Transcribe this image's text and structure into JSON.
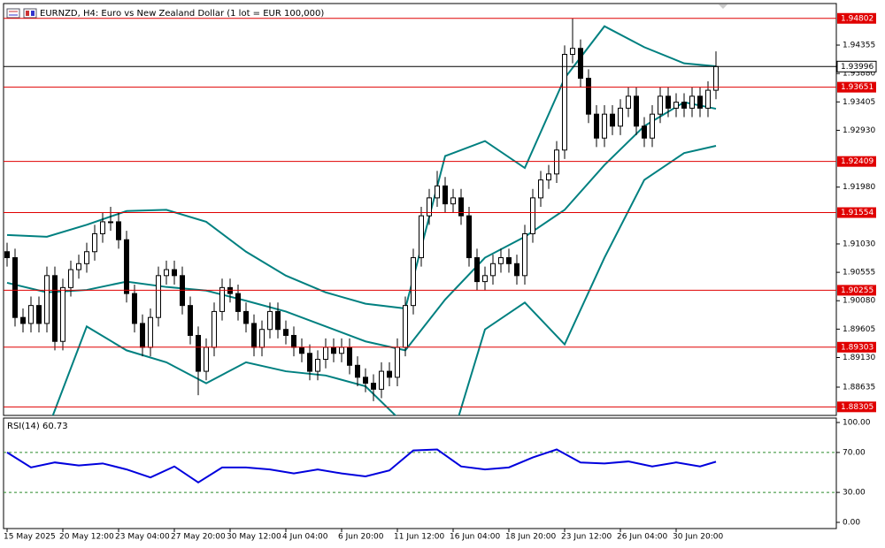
{
  "chart_data": [
    {
      "type": "candlestick",
      "title": "EURNZD, H4:  Euro vs New Zealand Dollar (1 lot = EUR 100,000)",
      "ylim": [
        1.88162,
        1.9505
      ],
      "yticks": [
        1.94355,
        {
          "value": 1.9388,
          "label": "1.93880"
        },
        1.93405,
        {
          "value": 1.9293,
          "label": "1.92930"
        },
        {
          "value": 1.9198,
          "label": "1.91980"
        },
        {
          "value": 1.9103,
          "label": "1.91030"
        },
        1.90555,
        {
          "value": 1.9008,
          "label": "1.90080"
        },
        1.89605,
        {
          "value": 1.8913,
          "label": "1.89130"
        },
        1.88635
      ],
      "xticks": [
        {
          "value": 0,
          "label": "15 May 2025"
        },
        {
          "value": 7,
          "label": "20 May 12:00"
        },
        {
          "value": 14,
          "label": "23 May 04:00"
        },
        {
          "value": 21,
          "label": "27 May 20:00"
        },
        {
          "value": 28,
          "label": "30 May 12:00"
        },
        {
          "value": 35,
          "label": "4 Jun 04:00"
        },
        {
          "value": 42,
          "label": "6 Jun 20:00"
        },
        {
          "value": 49,
          "label": "11 Jun 12:00"
        },
        {
          "value": 56,
          "label": "16 Jun 04:00"
        },
        {
          "value": 63,
          "label": "18 Jun 20:00"
        },
        {
          "value": 70,
          "label": "23 Jun 12:00"
        },
        {
          "value": 77,
          "label": "26 Jun 04:00"
        },
        {
          "value": 84,
          "label": "30 Jun 20:00"
        }
      ],
      "up_color": "#ffffff",
      "down_color": "#000000",
      "open": [
        1.909,
        1.908,
        1.898,
        1.897,
        1.9,
        1.897,
        1.905,
        1.894,
        1.903,
        1.906,
        1.907,
        1.909,
        1.912,
        1.914,
        1.914,
        1.911,
        1.902,
        1.897,
        1.893,
        1.898,
        1.905,
        1.906,
        1.905,
        1.9,
        1.895,
        1.889,
        1.893,
        1.899,
        1.903,
        1.902,
        1.899,
        1.897,
        1.893,
        1.896,
        1.899,
        1.896,
        1.895,
        1.893,
        1.892,
        1.889,
        1.891,
        1.893,
        1.892,
        1.893,
        1.89,
        1.888,
        1.887,
        1.886,
        1.889,
        1.888,
        1.893,
        1.9,
        1.908,
        1.915,
        1.918,
        1.92,
        1.917,
        1.918,
        1.915,
        1.908,
        1.904,
        1.905,
        1.907,
        1.908,
        1.907,
        1.905,
        1.912,
        1.918,
        1.921,
        1.922,
        1.926,
        1.942,
        1.943,
        1.938,
        1.932,
        1.928,
        1.932,
        1.93,
        1.933,
        1.935,
        1.93,
        1.928,
        1.932,
        1.935,
        1.933,
        1.934,
        1.933,
        1.935,
        1.933,
        1.936
      ],
      "high": [
        1.9105,
        1.9095,
        1.8995,
        1.9015,
        1.9015,
        1.9065,
        1.9065,
        1.9045,
        1.9075,
        1.9085,
        1.9105,
        1.9135,
        1.9155,
        1.9165,
        1.9155,
        1.9125,
        1.9035,
        1.8985,
        1.8995,
        1.9065,
        1.9075,
        1.9075,
        1.9065,
        1.9015,
        1.8965,
        1.8945,
        1.9005,
        1.9045,
        1.9045,
        1.9035,
        1.9005,
        1.8985,
        1.8975,
        1.9005,
        1.9005,
        1.8975,
        1.8965,
        1.8945,
        1.8935,
        1.8925,
        1.8945,
        1.8945,
        1.8945,
        1.8945,
        1.8915,
        1.8895,
        1.8885,
        1.8905,
        1.8905,
        1.8945,
        1.9015,
        1.9095,
        1.9165,
        1.9195,
        1.9225,
        1.9215,
        1.9195,
        1.9195,
        1.9165,
        1.9095,
        1.9065,
        1.9085,
        1.9095,
        1.9095,
        1.9085,
        1.9135,
        1.9195,
        1.9225,
        1.9235,
        1.9275,
        1.9435,
        1.94802,
        1.9445,
        1.9395,
        1.9335,
        1.9335,
        1.9335,
        1.9345,
        1.9365,
        1.9365,
        1.9315,
        1.9335,
        1.9365,
        1.9365,
        1.9355,
        1.9355,
        1.9365,
        1.9365,
        1.9375,
        1.9425
      ],
      "low": [
        1.9065,
        1.8965,
        1.8955,
        1.8955,
        1.8955,
        1.8955,
        1.8925,
        1.8925,
        1.9015,
        1.9045,
        1.9055,
        1.9075,
        1.9105,
        1.9125,
        1.9095,
        1.9005,
        1.8955,
        1.8915,
        1.8915,
        1.8965,
        1.9035,
        1.9035,
        1.8985,
        1.8935,
        1.885,
        1.8875,
        1.8915,
        1.8975,
        1.9005,
        1.8975,
        1.8955,
        1.8915,
        1.8915,
        1.8945,
        1.8945,
        1.8935,
        1.8915,
        1.8905,
        1.8875,
        1.8875,
        1.8895,
        1.8905,
        1.8905,
        1.8885,
        1.8865,
        1.8855,
        1.884,
        1.8845,
        1.8865,
        1.8865,
        1.8915,
        1.8985,
        1.9065,
        1.9135,
        1.9165,
        1.9155,
        1.9155,
        1.9135,
        1.9065,
        1.9025,
        1.9025,
        1.9035,
        1.9055,
        1.9055,
        1.9035,
        1.9035,
        1.9105,
        1.9165,
        1.9195,
        1.9205,
        1.9245,
        1.9405,
        1.9365,
        1.9305,
        1.9265,
        1.9265,
        1.9285,
        1.9285,
        1.9315,
        1.9285,
        1.9265,
        1.9265,
        1.9305,
        1.9315,
        1.9315,
        1.9315,
        1.9315,
        1.9315,
        1.9315,
        1.9345
      ],
      "close": [
        1.908,
        1.898,
        1.897,
        1.9,
        1.897,
        1.905,
        1.894,
        1.903,
        1.906,
        1.907,
        1.909,
        1.912,
        1.914,
        1.914,
        1.911,
        1.902,
        1.897,
        1.893,
        1.898,
        1.905,
        1.906,
        1.905,
        1.9,
        1.895,
        1.889,
        1.893,
        1.899,
        1.903,
        1.902,
        1.899,
        1.897,
        1.893,
        1.896,
        1.899,
        1.896,
        1.895,
        1.893,
        1.892,
        1.889,
        1.891,
        1.893,
        1.892,
        1.893,
        1.89,
        1.888,
        1.887,
        1.886,
        1.889,
        1.888,
        1.893,
        1.9,
        1.908,
        1.915,
        1.918,
        1.92,
        1.917,
        1.918,
        1.915,
        1.908,
        1.904,
        1.905,
        1.907,
        1.908,
        1.907,
        1.905,
        1.912,
        1.918,
        1.921,
        1.922,
        1.926,
        1.942,
        1.943,
        1.938,
        1.932,
        1.928,
        1.932,
        1.93,
        1.933,
        1.935,
        1.93,
        1.928,
        1.932,
        1.935,
        1.933,
        1.934,
        1.933,
        1.935,
        1.933,
        1.936,
        1.93996
      ],
      "bands": {
        "color": "#008080",
        "x": [
          0,
          5,
          10,
          15,
          20,
          25,
          30,
          35,
          40,
          45,
          50,
          55,
          60,
          65,
          70,
          75,
          80,
          85,
          89
        ],
        "upper": [
          1.9118,
          1.9115,
          1.9135,
          1.9158,
          1.916,
          1.914,
          1.909,
          1.905,
          1.9022,
          1.9003,
          1.8995,
          1.925,
          1.9275,
          1.923,
          1.938,
          1.9467,
          1.9432,
          1.9405,
          1.94
        ],
        "middle": [
          1.9038,
          1.9022,
          1.9026,
          1.904,
          1.9031,
          1.9025,
          1.9008,
          1.899,
          1.8965,
          1.894,
          1.8925,
          1.901,
          1.908,
          1.9115,
          1.916,
          1.9235,
          1.93,
          1.934,
          1.9329
        ],
        "lower": [
          1.872,
          1.879,
          1.8965,
          1.8925,
          1.8905,
          1.887,
          1.8905,
          1.889,
          1.8883,
          1.8865,
          1.88,
          1.874,
          1.896,
          1.9005,
          1.8935,
          1.908,
          1.921,
          1.9255,
          1.9267
        ]
      },
      "levels": {
        "color": "#e00000",
        "values": [
          1.94802,
          1.93651,
          1.92409,
          1.91554,
          1.90255,
          1.89303,
          1.88305
        ]
      },
      "last_price": 1.93996
    },
    {
      "type": "line",
      "title": "RSI(14) 60.73",
      "ylim": [
        0,
        100
      ],
      "yticks": [
        {
          "value": 100,
          "label": "100.00"
        },
        {
          "value": 70,
          "label": "70.00"
        },
        {
          "value": 30,
          "label": "30.00"
        },
        {
          "value": 0,
          "label": "0.00"
        }
      ],
      "levels": [
        70,
        30
      ],
      "color": "#0000dd",
      "x": [
        0,
        3,
        6,
        9,
        12,
        15,
        18,
        21,
        24,
        27,
        30,
        33,
        36,
        39,
        42,
        45,
        48,
        51,
        54,
        57,
        60,
        63,
        66,
        69,
        72,
        75,
        78,
        81,
        84,
        87,
        89
      ],
      "values": [
        70,
        55,
        60,
        57,
        59,
        53,
        45,
        56,
        40,
        55,
        55,
        53,
        49,
        53,
        49,
        46,
        52,
        72,
        73,
        56,
        53,
        55,
        65,
        73,
        60,
        59,
        61,
        56,
        60,
        56,
        60.73
      ]
    }
  ]
}
